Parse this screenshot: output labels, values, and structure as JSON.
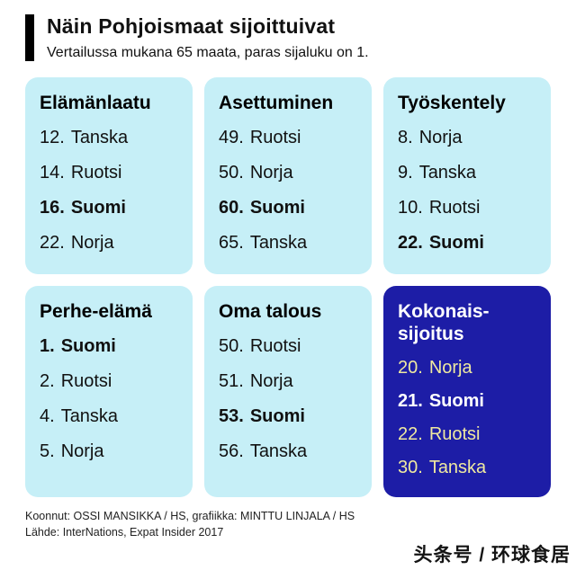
{
  "header": {
    "title": "Näin Pohjoismaat sijoittuivat",
    "subtitle": "Vertailussa mukana 65 maata, paras sijaluku on 1."
  },
  "cards": [
    {
      "title": "Elämänlaatu",
      "variant": "light",
      "items": [
        {
          "rank": "12.",
          "country": "Tanska",
          "bold": false
        },
        {
          "rank": "14.",
          "country": "Ruotsi",
          "bold": false
        },
        {
          "rank": "16.",
          "country": "Suomi",
          "bold": true
        },
        {
          "rank": "22.",
          "country": "Norja",
          "bold": false
        }
      ]
    },
    {
      "title": "Asettuminen",
      "variant": "light",
      "items": [
        {
          "rank": "49.",
          "country": "Ruotsi",
          "bold": false
        },
        {
          "rank": "50.",
          "country": "Norja",
          "bold": false
        },
        {
          "rank": "60.",
          "country": "Suomi",
          "bold": true
        },
        {
          "rank": "65.",
          "country": "Tanska",
          "bold": false
        }
      ]
    },
    {
      "title": "Työskentely",
      "variant": "light",
      "items": [
        {
          "rank": "8.",
          "country": "Norja",
          "bold": false
        },
        {
          "rank": "9.",
          "country": "Tanska",
          "bold": false
        },
        {
          "rank": "10.",
          "country": "Ruotsi",
          "bold": false
        },
        {
          "rank": "22.",
          "country": "Suomi",
          "bold": true
        }
      ]
    },
    {
      "title": "Perhe-elämä",
      "variant": "light",
      "items": [
        {
          "rank": "1.",
          "country": "Suomi",
          "bold": true
        },
        {
          "rank": "2.",
          "country": "Ruotsi",
          "bold": false
        },
        {
          "rank": "4.",
          "country": "Tanska",
          "bold": false
        },
        {
          "rank": "5.",
          "country": "Norja",
          "bold": false
        }
      ]
    },
    {
      "title": "Oma talous",
      "variant": "light",
      "items": [
        {
          "rank": "50.",
          "country": "Ruotsi",
          "bold": false
        },
        {
          "rank": "51.",
          "country": "Norja",
          "bold": false
        },
        {
          "rank": "53.",
          "country": "Suomi",
          "bold": true
        },
        {
          "rank": "56.",
          "country": "Tanska",
          "bold": false
        }
      ]
    },
    {
      "title": "Kokonais-\nsijoitus",
      "variant": "dark",
      "items": [
        {
          "rank": "20.",
          "country": "Norja",
          "bold": false
        },
        {
          "rank": "21.",
          "country": "Suomi",
          "bold": true
        },
        {
          "rank": "22.",
          "country": "Ruotsi",
          "bold": false
        },
        {
          "rank": "30.",
          "country": "Tanska",
          "bold": false
        }
      ]
    }
  ],
  "footer": {
    "line1": "Koonnut: OSSI MANSIKKA / HS, grafiikka: MINTTU LINJALA / HS",
    "line2": "Lähde: InterNations, Expat Insider 2017"
  },
  "watermark": "头条号 / 环球食居",
  "colors": {
    "card_light_bg": "#c6eff7",
    "card_dark_bg": "#1d1da6",
    "dark_item_text": "#efe9a0",
    "accent_bar": "#000000"
  },
  "chart_data": {
    "type": "table",
    "title": "Näin Pohjoismaat sijoittuivat",
    "subtitle": "Vertailussa mukana 65 maata, paras sijaluku on 1.",
    "categories": [
      "Elämänlaatu",
      "Asettuminen",
      "Työskentely",
      "Perhe-elämä",
      "Oma talous",
      "Kokonaissijoitus"
    ],
    "rankings": {
      "Elämänlaatu": [
        {
          "rank": 12,
          "country": "Tanska"
        },
        {
          "rank": 14,
          "country": "Ruotsi"
        },
        {
          "rank": 16,
          "country": "Suomi"
        },
        {
          "rank": 22,
          "country": "Norja"
        }
      ],
      "Asettuminen": [
        {
          "rank": 49,
          "country": "Ruotsi"
        },
        {
          "rank": 50,
          "country": "Norja"
        },
        {
          "rank": 60,
          "country": "Suomi"
        },
        {
          "rank": 65,
          "country": "Tanska"
        }
      ],
      "Työskentely": [
        {
          "rank": 8,
          "country": "Norja"
        },
        {
          "rank": 9,
          "country": "Tanska"
        },
        {
          "rank": 10,
          "country": "Ruotsi"
        },
        {
          "rank": 22,
          "country": "Suomi"
        }
      ],
      "Perhe-elämä": [
        {
          "rank": 1,
          "country": "Suomi"
        },
        {
          "rank": 2,
          "country": "Ruotsi"
        },
        {
          "rank": 4,
          "country": "Tanska"
        },
        {
          "rank": 5,
          "country": "Norja"
        }
      ],
      "Oma talous": [
        {
          "rank": 50,
          "country": "Ruotsi"
        },
        {
          "rank": 51,
          "country": "Norja"
        },
        {
          "rank": 53,
          "country": "Suomi"
        },
        {
          "rank": 56,
          "country": "Tanska"
        }
      ],
      "Kokonaissijoitus": [
        {
          "rank": 20,
          "country": "Norja"
        },
        {
          "rank": 21,
          "country": "Suomi"
        },
        {
          "rank": 22,
          "country": "Ruotsi"
        },
        {
          "rank": 30,
          "country": "Tanska"
        }
      ]
    },
    "highlighted_country": "Suomi",
    "total_countries": 65
  }
}
